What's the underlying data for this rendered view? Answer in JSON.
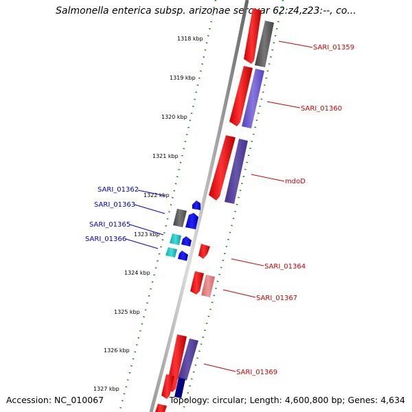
{
  "title": "Salmonella enterica subsp. arizonae serovar 62:z4,z23:--, co...",
  "footer": {
    "accession": "Accession: NC_010067",
    "summary": "Topology: circular; Length: 4,600,800 bp; Genes: 4,634"
  },
  "kbp_labels": [
    "1318 kbp",
    "1319 kbp",
    "1320 kbp",
    "1321 kbp",
    "1322 kbp",
    "1323 kbp",
    "1324 kbp",
    "1325 kbp",
    "1326 kbp",
    "1327 kbp"
  ],
  "gene_labels_right": [
    "SARI_01359",
    "SARI_01360",
    "mdoD",
    "SARI_01364",
    "SARI_01367",
    "SARI_01369"
  ],
  "gene_labels_left": [
    "SARI_01362",
    "SARI_01363",
    "SARI_01365",
    "SARI_01366"
  ],
  "colors": {
    "forward_strand": "#ff0000",
    "reverse_strand": "#0000ff",
    "cds_gray": "#555555",
    "cds_purple": "#554499",
    "cds_light_purple": "#7766cc",
    "rna_cyan": "#22cccc",
    "tick_green": "#228822",
    "backbone": "#777777"
  }
}
